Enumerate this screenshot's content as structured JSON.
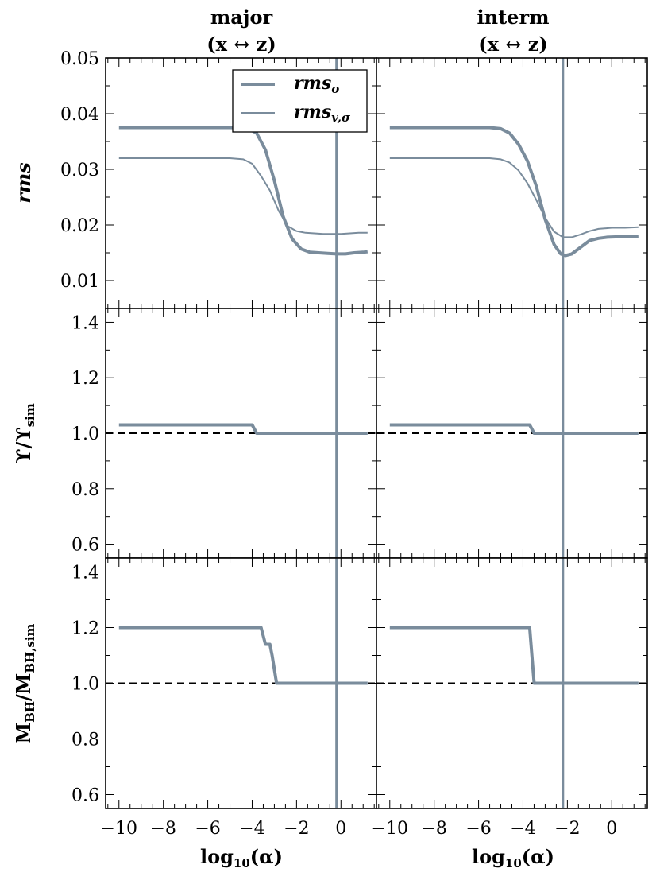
{
  "chart_data": {
    "type": "line",
    "columns": [
      {
        "title_line1": "major",
        "title_line2": "(x ↔ z)",
        "vline_x": -0.2
      },
      {
        "title_line1": "interm",
        "title_line2": "(x ↔ z)",
        "vline_x": -2.2
      }
    ],
    "xlabel": "log₁₀(α)",
    "xlim": [
      -10.6,
      1.6
    ],
    "xticks": [
      -10,
      -8,
      -6,
      -4,
      -2,
      0
    ],
    "xtick_labels": [
      "−10",
      "−8",
      "−6",
      "−4",
      "−2",
      "0"
    ],
    "legend": {
      "loc": "upper center",
      "entries": [
        "rmsσ",
        "rmsv,σ"
      ]
    },
    "rows": [
      {
        "ylabel": "rms",
        "ylim": [
          0.005,
          0.05
        ],
        "yticks": [
          0.01,
          0.02,
          0.03,
          0.04,
          0.05
        ],
        "ytick_labels": [
          "0.01",
          "0.02",
          "0.03",
          "0.04",
          "0.05"
        ],
        "refline": null,
        "panels": [
          {
            "series": [
              {
                "name": "rmsσ",
                "x": [
                  -10,
                  -5,
                  -4.2,
                  -3.8,
                  -3.4,
                  -3.0,
                  -2.6,
                  -2.2,
                  -1.8,
                  -1.4,
                  -1.0,
                  -0.6,
                  -0.2,
                  0.2,
                  0.6,
                  1.0,
                  1.2
                ],
                "y": [
                  0.0375,
                  0.0375,
                  0.0374,
                  0.0365,
                  0.0335,
                  0.028,
                  0.0215,
                  0.0175,
                  0.0157,
                  0.0151,
                  0.015,
                  0.0149,
                  0.0148,
                  0.0148,
                  0.015,
                  0.0151,
                  0.0152
                ]
              },
              {
                "name": "rmsv,σ",
                "x": [
                  -10,
                  -5,
                  -4.4,
                  -4.0,
                  -3.6,
                  -3.2,
                  -2.8,
                  -2.4,
                  -2.0,
                  -1.6,
                  -1.2,
                  -0.8,
                  -0.4,
                  0.0,
                  0.4,
                  0.8,
                  1.2
                ],
                "y": [
                  0.032,
                  0.032,
                  0.0318,
                  0.031,
                  0.0288,
                  0.0262,
                  0.0225,
                  0.0198,
                  0.0189,
                  0.0186,
                  0.0185,
                  0.0184,
                  0.0184,
                  0.0184,
                  0.0185,
                  0.0186,
                  0.0186
                ]
              }
            ]
          },
          {
            "series": [
              {
                "name": "rmsσ",
                "x": [
                  -10,
                  -5.5,
                  -5.0,
                  -4.6,
                  -4.2,
                  -3.8,
                  -3.4,
                  -3.0,
                  -2.6,
                  -2.3,
                  -2.1,
                  -1.8,
                  -1.4,
                  -1.0,
                  -0.6,
                  -0.2,
                  0.4,
                  1.2
                ],
                "y": [
                  0.0375,
                  0.0375,
                  0.0373,
                  0.0365,
                  0.0345,
                  0.0315,
                  0.027,
                  0.021,
                  0.0165,
                  0.0148,
                  0.0145,
                  0.0148,
                  0.016,
                  0.0172,
                  0.0176,
                  0.0178,
                  0.0179,
                  0.018
                ]
              },
              {
                "name": "rmsv,σ",
                "x": [
                  -10,
                  -5.5,
                  -5.0,
                  -4.6,
                  -4.2,
                  -3.8,
                  -3.4,
                  -3.0,
                  -2.6,
                  -2.2,
                  -1.8,
                  -1.4,
                  -1.0,
                  -0.6,
                  0.0,
                  0.6,
                  1.2
                ],
                "y": [
                  0.032,
                  0.032,
                  0.0318,
                  0.0312,
                  0.0298,
                  0.0275,
                  0.0245,
                  0.0213,
                  0.0188,
                  0.0178,
                  0.0178,
                  0.0183,
                  0.0189,
                  0.0193,
                  0.0195,
                  0.0195,
                  0.0196
                ]
              }
            ]
          }
        ]
      },
      {
        "ylabel": "ϒ/ϒsim",
        "ylim": [
          0.55,
          1.45
        ],
        "yticks": [
          0.6,
          0.8,
          1.0,
          1.2,
          1.4
        ],
        "ytick_labels": [
          "0.6",
          "0.8",
          "1.0",
          "1.2",
          "1.4"
        ],
        "refline": 1.0,
        "panels": [
          {
            "series": [
              {
                "name": "rmsσ",
                "x": [
                  -10,
                  -4.0,
                  -3.8,
                  1.2
                ],
                "y": [
                  1.03,
                  1.03,
                  1.0,
                  1.0
                ]
              }
            ]
          },
          {
            "series": [
              {
                "name": "rmsσ",
                "x": [
                  -10,
                  -3.7,
                  -3.5,
                  1.2
                ],
                "y": [
                  1.03,
                  1.03,
                  1.0,
                  1.0
                ]
              }
            ]
          }
        ]
      },
      {
        "ylabel": "MBH/MBH,sim",
        "ylim": [
          0.55,
          1.45
        ],
        "yticks": [
          0.6,
          0.8,
          1.0,
          1.2,
          1.4
        ],
        "ytick_labels": [
          "0.6",
          "0.8",
          "1.0",
          "1.2",
          "1.4"
        ],
        "refline": 1.0,
        "panels": [
          {
            "series": [
              {
                "name": "rmsσ",
                "x": [
                  -10,
                  -3.6,
                  -3.4,
                  -3.2,
                  -3.1,
                  -2.9,
                  1.2
                ],
                "y": [
                  1.2,
                  1.2,
                  1.14,
                  1.14,
                  1.1,
                  1.0,
                  1.0
                ]
              }
            ]
          },
          {
            "series": [
              {
                "name": "rmsσ",
                "x": [
                  -10,
                  -3.7,
                  -3.5,
                  1.2
                ],
                "y": [
                  1.2,
                  1.2,
                  1.0,
                  1.0
                ]
              }
            ]
          }
        ]
      }
    ]
  },
  "colors": {
    "series": "#7a8c9c",
    "vline": "#7a8c9c",
    "axes": "#000000",
    "refline": "#000000"
  },
  "labels": {
    "col1_title1": "major",
    "col1_title2": "(x ↔ z)",
    "col2_title1": "interm",
    "col2_title2": "(x ↔ z)",
    "row1_ylabel": "rms",
    "row2_ylabel_main": "ϒ/ϒ",
    "row2_ylabel_sub": "sim",
    "row3_ylabel_a": "M",
    "row3_ylabel_sub1": "BH",
    "row3_ylabel_b": "/M",
    "row3_ylabel_sub2": "BH,sim",
    "xlabel_main": "log",
    "xlabel_sub": "10",
    "xlabel_tail": "(α)",
    "legend1": "rms",
    "legend1_sub": "σ",
    "legend2": "rms",
    "legend2_sub": "v,σ"
  }
}
